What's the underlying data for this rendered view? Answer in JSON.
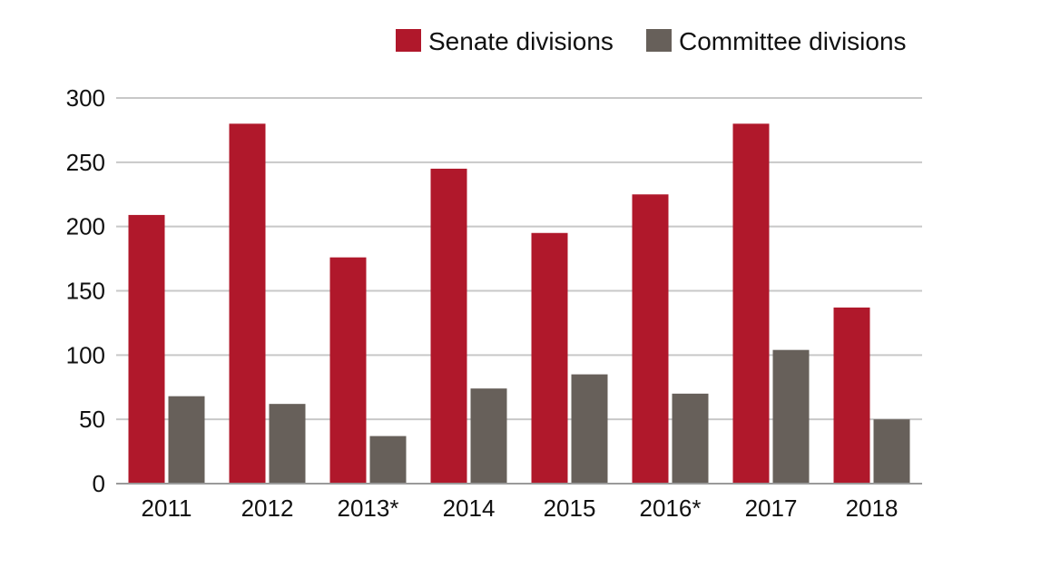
{
  "chart_data": {
    "type": "bar",
    "categories": [
      "2011",
      "2012",
      "2013*",
      "2014",
      "2015",
      "2016*",
      "2017",
      "2018"
    ],
    "series": [
      {
        "name": "Senate divisions",
        "color": "#b0182b",
        "values": [
          209,
          280,
          176,
          245,
          195,
          225,
          280,
          137
        ]
      },
      {
        "name": "Committee divisions",
        "color": "#67605a",
        "values": [
          68,
          62,
          37,
          74,
          85,
          70,
          104,
          50
        ]
      }
    ],
    "ylim": [
      0,
      300
    ],
    "yticks": [
      "0",
      "50",
      "100",
      "150",
      "200",
      "250",
      "300"
    ],
    "grid": true,
    "legend_position": "top-right",
    "title": "",
    "xlabel": "",
    "ylabel": ""
  }
}
